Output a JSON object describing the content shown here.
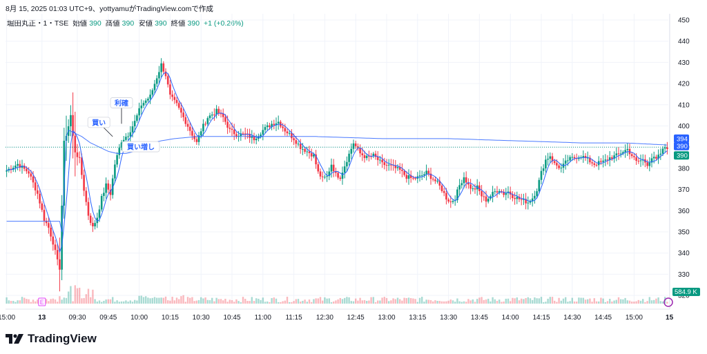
{
  "header": {
    "text": "8月 15, 2025 01:03 UTC+9、yottyamuがTradingView.comで作成"
  },
  "legend": {
    "symbol": "堀田丸正・1・TSE",
    "open_label": "始値",
    "open": "390",
    "high_label": "高値",
    "high": "390",
    "low_label": "安値",
    "low": "390",
    "close_label": "終値",
    "close": "390",
    "change": "+1 (+0.26%)"
  },
  "footer": {
    "brand": "TradingView"
  },
  "colors": {
    "up": "#089981",
    "down": "#f23645",
    "ma": "#2962ff",
    "vwap": "#2962ff",
    "last": "#089981"
  },
  "chart_data": {
    "type": "candlestick",
    "y_ticks": [
      450,
      440,
      430,
      420,
      410,
      400,
      390,
      380,
      370,
      360,
      350,
      340,
      330,
      320
    ],
    "ylim": [
      318,
      452
    ],
    "x_labels": [
      "15:00",
      "13",
      "09:30",
      "09:45",
      "10:00",
      "10:15",
      "10:30",
      "10:45",
      "11:00",
      "11:15",
      "12:30",
      "12:45",
      "13:00",
      "13:15",
      "13:30",
      "13:45",
      "14:00",
      "14:15",
      "14:30",
      "14:45",
      "15:00",
      "15"
    ],
    "x_label_index": [
      0,
      16,
      32,
      46,
      60,
      74,
      88,
      102,
      116,
      130,
      144,
      158,
      172,
      186,
      200,
      214,
      228,
      242,
      256,
      270,
      284,
      300
    ],
    "n_bars": 300,
    "anchors": [
      [
        0,
        379
      ],
      [
        5,
        382
      ],
      [
        10,
        378
      ],
      [
        14,
        368
      ],
      [
        17,
        356
      ],
      [
        19,
        352
      ],
      [
        21,
        345
      ],
      [
        23,
        336
      ],
      [
        24,
        333
      ],
      [
        26,
        392
      ],
      [
        28,
        400
      ],
      [
        29,
        405
      ],
      [
        30,
        395
      ],
      [
        31,
        388
      ],
      [
        33,
        384
      ],
      [
        35,
        370
      ],
      [
        37,
        358
      ],
      [
        39,
        352
      ],
      [
        41,
        357
      ],
      [
        43,
        366
      ],
      [
        45,
        372
      ],
      [
        47,
        368
      ],
      [
        49,
        382
      ],
      [
        52,
        393
      ],
      [
        55,
        396
      ],
      [
        58,
        402
      ],
      [
        61,
        410
      ],
      [
        63,
        412
      ],
      [
        65,
        414
      ],
      [
        67,
        420
      ],
      [
        69,
        426
      ],
      [
        70,
        429
      ],
      [
        72,
        424
      ],
      [
        74,
        414
      ],
      [
        77,
        410
      ],
      [
        80,
        404
      ],
      [
        84,
        396
      ],
      [
        86,
        392
      ],
      [
        88,
        398
      ],
      [
        91,
        404
      ],
      [
        95,
        407
      ],
      [
        98,
        404
      ],
      [
        101,
        398
      ],
      [
        104,
        396
      ],
      [
        108,
        396
      ],
      [
        112,
        394
      ],
      [
        116,
        398
      ],
      [
        120,
        401
      ],
      [
        123,
        402
      ],
      [
        126,
        398
      ],
      [
        130,
        394
      ],
      [
        133,
        390
      ],
      [
        136,
        388
      ],
      [
        139,
        386
      ],
      [
        141,
        378
      ],
      [
        143,
        375
      ],
      [
        145,
        376
      ],
      [
        147,
        382
      ],
      [
        149,
        377
      ],
      [
        151,
        376
      ],
      [
        154,
        384
      ],
      [
        157,
        392
      ],
      [
        160,
        387
      ],
      [
        163,
        385
      ],
      [
        166,
        386
      ],
      [
        170,
        382
      ],
      [
        174,
        381
      ],
      [
        178,
        379
      ],
      [
        181,
        376
      ],
      [
        184,
        375
      ],
      [
        187,
        376
      ],
      [
        190,
        378
      ],
      [
        192,
        376
      ],
      [
        195,
        373
      ],
      [
        197,
        370
      ],
      [
        199,
        366
      ],
      [
        201,
        364
      ],
      [
        203,
        366
      ],
      [
        205,
        372
      ],
      [
        207,
        376
      ],
      [
        209,
        372
      ],
      [
        211,
        370
      ],
      [
        213,
        371
      ],
      [
        215,
        367
      ],
      [
        217,
        365
      ],
      [
        219,
        367
      ],
      [
        221,
        369
      ],
      [
        223,
        370
      ],
      [
        225,
        368
      ],
      [
        227,
        369
      ],
      [
        229,
        367
      ],
      [
        231,
        366
      ],
      [
        233,
        365
      ],
      [
        236,
        364
      ],
      [
        238,
        366
      ],
      [
        240,
        370
      ],
      [
        242,
        378
      ],
      [
        244,
        384
      ],
      [
        246,
        386
      ],
      [
        248,
        382
      ],
      [
        251,
        380
      ],
      [
        254,
        384
      ],
      [
        257,
        385
      ],
      [
        260,
        386
      ],
      [
        263,
        384
      ],
      [
        266,
        382
      ],
      [
        270,
        383
      ],
      [
        273,
        385
      ],
      [
        276,
        386
      ],
      [
        279,
        388
      ],
      [
        281,
        389
      ],
      [
        283,
        386
      ],
      [
        285,
        383
      ],
      [
        288,
        384
      ],
      [
        290,
        382
      ],
      [
        292,
        385
      ],
      [
        294,
        384
      ],
      [
        296,
        387
      ],
      [
        298,
        390
      ],
      [
        299,
        390
      ]
    ],
    "vwap_anchors": [
      [
        0,
        355
      ],
      [
        24,
        355
      ],
      [
        25,
        350
      ],
      [
        26,
        370
      ],
      [
        27,
        395
      ],
      [
        28,
        398
      ],
      [
        30,
        397
      ],
      [
        34,
        395
      ],
      [
        38,
        392
      ],
      [
        42,
        390
      ],
      [
        46,
        388
      ],
      [
        50,
        387
      ],
      [
        54,
        387
      ],
      [
        58,
        388
      ],
      [
        62,
        390
      ],
      [
        66,
        392
      ],
      [
        70,
        393
      ],
      [
        76,
        394
      ],
      [
        86,
        395
      ],
      [
        110,
        395
      ],
      [
        140,
        395
      ],
      [
        170,
        394
      ],
      [
        200,
        394
      ],
      [
        230,
        393
      ],
      [
        260,
        392
      ],
      [
        280,
        392
      ],
      [
        299,
        391
      ]
    ],
    "annotations": [
      {
        "label": "利確",
        "bar": 52,
        "price": 401
      },
      {
        "label": "買い",
        "bar": 48,
        "price": 395
      },
      {
        "label": "買い増し",
        "bar": 57,
        "price": 392
      }
    ],
    "price_tags": [
      {
        "value": "394",
        "color": "#2962ff"
      },
      {
        "value": "390",
        "color": "#2962ff"
      },
      {
        "value": "390",
        "color": "#089981"
      }
    ],
    "volume_tag": "584.9 K",
    "earnings_marker": "E"
  }
}
